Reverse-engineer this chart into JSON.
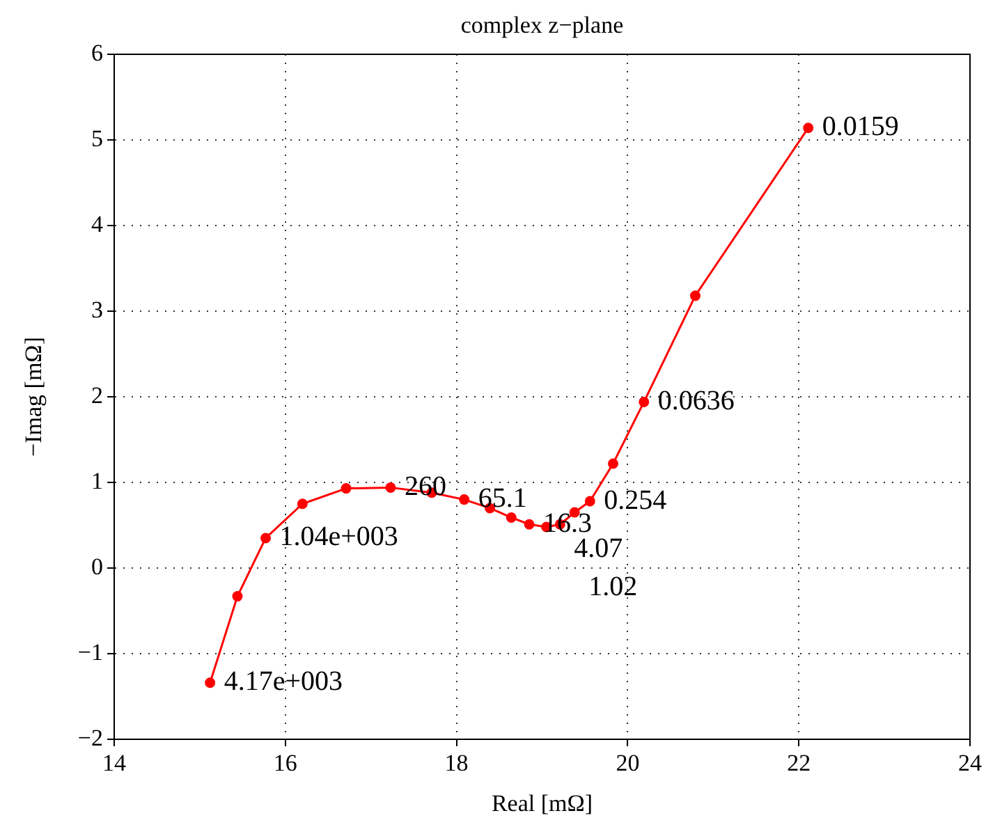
{
  "chart_data": {
    "type": "line",
    "title": "complex z−plane",
    "xlabel": "Real [mΩ]",
    "ylabel": "−Imag [mΩ]",
    "x": [
      15.12,
      15.44,
      15.77,
      16.2,
      16.71,
      17.23,
      17.71,
      18.09,
      18.39,
      18.64,
      18.85,
      19.05,
      19.21,
      19.38,
      19.56,
      19.83,
      20.19,
      20.79,
      22.11
    ],
    "series": [
      {
        "color": "#ff0000",
        "values": [
          -1.34,
          -0.33,
          0.35,
          0.75,
          0.93,
          0.94,
          0.88,
          0.8,
          0.7,
          0.59,
          0.51,
          0.48,
          0.51,
          0.65,
          0.78,
          1.22,
          1.94,
          3.18,
          5.14
        ]
      }
    ],
    "annotations": [
      {
        "text": "4.17e+003",
        "x": 15.12,
        "y": -1.34
      },
      {
        "text": "1.04e+003",
        "x": 15.77,
        "y": 0.35
      },
      {
        "text": "260",
        "x": 17.23,
        "y": 0.94
      },
      {
        "text": "65.1",
        "x": 18.09,
        "y": 0.8
      },
      {
        "text": "16.3",
        "x": 18.85,
        "y": 0.51
      },
      {
        "text": "4.07",
        "x": 19.21,
        "y": 0.51
      },
      {
        "text": "1.02",
        "x": 19.38,
        "y": 0.65
      },
      {
        "text": "0.254",
        "x": 19.56,
        "y": 0.78
      },
      {
        "text": "0.0636",
        "x": 20.19,
        "y": 1.94
      },
      {
        "text": "0.0159",
        "x": 22.11,
        "y": 5.14
      }
    ],
    "xlim": [
      14,
      24
    ],
    "xticks": [
      14,
      16,
      18,
      20,
      22,
      24
    ],
    "ylim": [
      -2,
      6
    ],
    "yticks": [
      -2,
      -1,
      0,
      1,
      2,
      3,
      4,
      5,
      6
    ],
    "grid": true,
    "marker": "circle",
    "line_style": "solid",
    "legend": false
  }
}
